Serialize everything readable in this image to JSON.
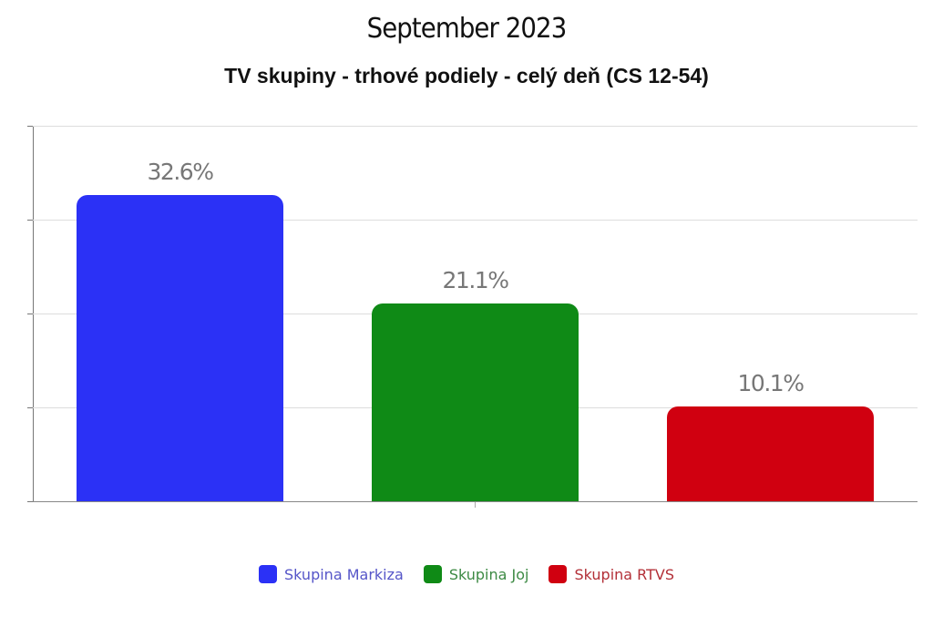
{
  "title": "September 2023",
  "subtitle": "TV skupiny - trhové podiely - celý deň (CS 12-54)",
  "chart_data": {
    "type": "bar",
    "title": "September 2023",
    "subtitle": "TV skupiny - trhové podiely - celý deň (CS 12-54)",
    "categories": [
      "Skupina Markiza",
      "Skupina Joj",
      "Skupina RTVS"
    ],
    "values": [
      32.6,
      21.1,
      10.1
    ],
    "value_labels": [
      "32.6%",
      "21.1%",
      "10.1%"
    ],
    "colors": [
      "#2b31f6",
      "#0f8a16",
      "#d00010"
    ],
    "legend_text_colors": [
      "#5555c8",
      "#3d8a44",
      "#b33038"
    ],
    "xlabel": "",
    "ylabel": "",
    "ylim": [
      0,
      40
    ],
    "y_gridlines": [
      0,
      10,
      20,
      30,
      40
    ],
    "y_tick_labels_visible": false,
    "grid": true,
    "legend_position": "bottom"
  },
  "legend": [
    {
      "label": "Skupina Markiza",
      "color": "#2b31f6",
      "text_color": "#5555c8"
    },
    {
      "label": "Skupina Joj",
      "color": "#0f8a16",
      "text_color": "#3d8a44"
    },
    {
      "label": "Skupina RTVS",
      "color": "#d00010",
      "text_color": "#b33038"
    }
  ]
}
